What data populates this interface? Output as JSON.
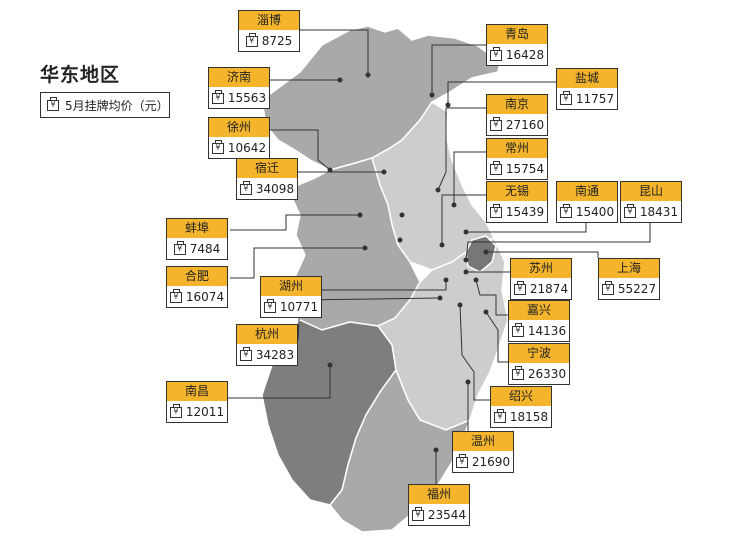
{
  "legend": {
    "title": "华东地区",
    "unit_label": "5月挂牌均价（元）",
    "icon": "wallet-icon"
  },
  "colors": {
    "light_region": "#cbcbcb",
    "mid_region": "#a4a4a4",
    "dark_region": "#777777",
    "label_header": "#f4b52c"
  },
  "cities": [
    {
      "id": "zibo",
      "name": "淄博",
      "value": "8725"
    },
    {
      "id": "qingdao",
      "name": "青岛",
      "value": "16428"
    },
    {
      "id": "jinan",
      "name": "济南",
      "value": "15563"
    },
    {
      "id": "yancheng",
      "name": "盐城",
      "value": "11757"
    },
    {
      "id": "nanjing",
      "name": "南京",
      "value": "27160"
    },
    {
      "id": "xuzhou",
      "name": "徐州",
      "value": "10642"
    },
    {
      "id": "changzhou",
      "name": "常州",
      "value": "15754"
    },
    {
      "id": "suqian",
      "name": "宿迁",
      "value": "34098"
    },
    {
      "id": "wuxi",
      "name": "无锡",
      "value": "15439"
    },
    {
      "id": "nantong",
      "name": "南通",
      "value": "15400"
    },
    {
      "id": "kunshan",
      "name": "昆山",
      "value": "18431"
    },
    {
      "id": "bengbu",
      "name": "蚌埠",
      "value": "7484"
    },
    {
      "id": "hefei",
      "name": "合肥",
      "value": "16074"
    },
    {
      "id": "suzhou",
      "name": "苏州",
      "value": "21874"
    },
    {
      "id": "shanghai",
      "name": "上海",
      "value": "55227"
    },
    {
      "id": "huzhou",
      "name": "湖州",
      "value": "10771"
    },
    {
      "id": "jiaxing",
      "name": "嘉兴",
      "value": "14136"
    },
    {
      "id": "hangzhou",
      "name": "杭州",
      "value": "34283"
    },
    {
      "id": "ningbo",
      "name": "宁波",
      "value": "26330"
    },
    {
      "id": "nanchang",
      "name": "南昌",
      "value": "12011"
    },
    {
      "id": "shaoxing",
      "name": "绍兴",
      "value": "18158"
    },
    {
      "id": "wenzhou",
      "name": "温州",
      "value": "21690"
    },
    {
      "id": "fuzhou",
      "name": "福州",
      "value": "23544"
    }
  ]
}
